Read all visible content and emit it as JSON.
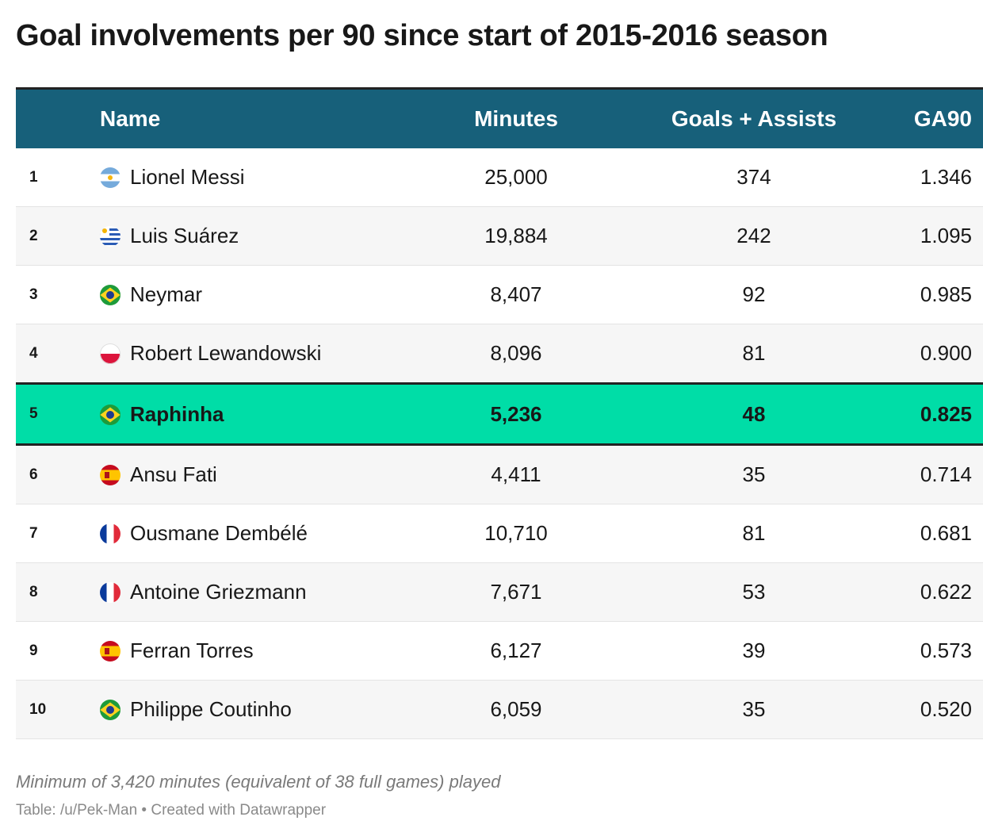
{
  "title": "Goal involvements per 90 since start of 2015-2016 season",
  "columns": {
    "rank": "",
    "name": "Name",
    "minutes": "Minutes",
    "ga": "Goals + Assists",
    "ga90": "GA90"
  },
  "rows": [
    {
      "rank": "1",
      "flag": "argentina-flag-icon",
      "name": "Lionel Messi",
      "minutes": "25,000",
      "ga": "374",
      "ga90": "1.346"
    },
    {
      "rank": "2",
      "flag": "uruguay-flag-icon",
      "name": "Luis Suárez",
      "minutes": "19,884",
      "ga": "242",
      "ga90": "1.095"
    },
    {
      "rank": "3",
      "flag": "brazil-flag-icon",
      "name": "Neymar",
      "minutes": "8,407",
      "ga": "92",
      "ga90": "0.985"
    },
    {
      "rank": "4",
      "flag": "poland-flag-icon",
      "name": "Robert Lewandowski",
      "minutes": "8,096",
      "ga": "81",
      "ga90": "0.900"
    },
    {
      "rank": "5",
      "flag": "brazil-flag-icon",
      "name": "Raphinha",
      "minutes": "5,236",
      "ga": "48",
      "ga90": "0.825",
      "highlight": true
    },
    {
      "rank": "6",
      "flag": "spain-flag-icon",
      "name": "Ansu Fati",
      "minutes": "4,411",
      "ga": "35",
      "ga90": "0.714"
    },
    {
      "rank": "7",
      "flag": "france-flag-icon",
      "name": "Ousmane Dembélé",
      "minutes": "10,710",
      "ga": "81",
      "ga90": "0.681"
    },
    {
      "rank": "8",
      "flag": "france-flag-icon",
      "name": "Antoine Griezmann",
      "minutes": "7,671",
      "ga": "53",
      "ga90": "0.622"
    },
    {
      "rank": "9",
      "flag": "spain-flag-icon",
      "name": "Ferran Torres",
      "minutes": "6,127",
      "ga": "39",
      "ga90": "0.573"
    },
    {
      "rank": "10",
      "flag": "brazil-flag-icon",
      "name": "Philippe Coutinho",
      "minutes": "6,059",
      "ga": "35",
      "ga90": "0.520"
    }
  ],
  "note": "Minimum of 3,420 minutes (equivalent of 38 full games) played",
  "source": "Table: /u/Pek-Man • Created with Datawrapper",
  "colors": {
    "header_bg": "#17607a",
    "highlight_bg": "#00dda7",
    "stripe_bg": "#f6f6f6"
  },
  "chart_data": {
    "type": "table",
    "title": "Goal involvements per 90 since start of 2015-2016 season",
    "columns": [
      "",
      "Name",
      "Minutes",
      "Goals + Assists",
      "GA90"
    ],
    "rows": [
      [
        1,
        "Lionel Messi",
        25000,
        374,
        1.346
      ],
      [
        2,
        "Luis Suárez",
        19884,
        242,
        1.095
      ],
      [
        3,
        "Neymar",
        8407,
        92,
        0.985
      ],
      [
        4,
        "Robert Lewandowski",
        8096,
        81,
        0.9
      ],
      [
        5,
        "Raphinha",
        5236,
        48,
        0.825
      ],
      [
        6,
        "Ansu Fati",
        4411,
        35,
        0.714
      ],
      [
        7,
        "Ousmane Dembélé",
        10710,
        81,
        0.681
      ],
      [
        8,
        "Antoine Griezmann",
        7671,
        53,
        0.622
      ],
      [
        9,
        "Ferran Torres",
        6127,
        39,
        0.573
      ],
      [
        10,
        "Philippe Coutinho",
        6059,
        35,
        0.52
      ]
    ],
    "highlighted_row": "Raphinha"
  }
}
